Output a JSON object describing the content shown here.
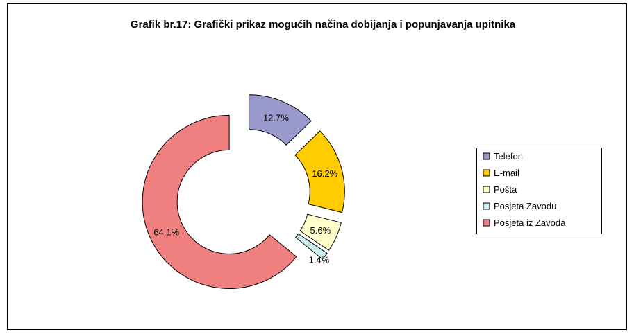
{
  "chart_data": {
    "type": "pie",
    "donut": true,
    "exploded": true,
    "title": "Grafik br.17: Grafički prikaz mogućih načina dobijanja i popunjavanja upitnika",
    "categories": [
      "Telefon",
      "E-mail",
      "Pošta",
      "Posjeta Zavodu",
      "Posjeta iz Zavoda"
    ],
    "values": [
      12.7,
      16.2,
      5.6,
      1.4,
      64.1
    ],
    "value_labels": [
      "12.7%",
      "16.2%",
      "5.6%",
      "1.4%",
      "64.1%"
    ],
    "colors": [
      "#9999cc",
      "#ffcc00",
      "#ffffcc",
      "#ccecf0",
      "#f08080"
    ],
    "legend": "right"
  }
}
